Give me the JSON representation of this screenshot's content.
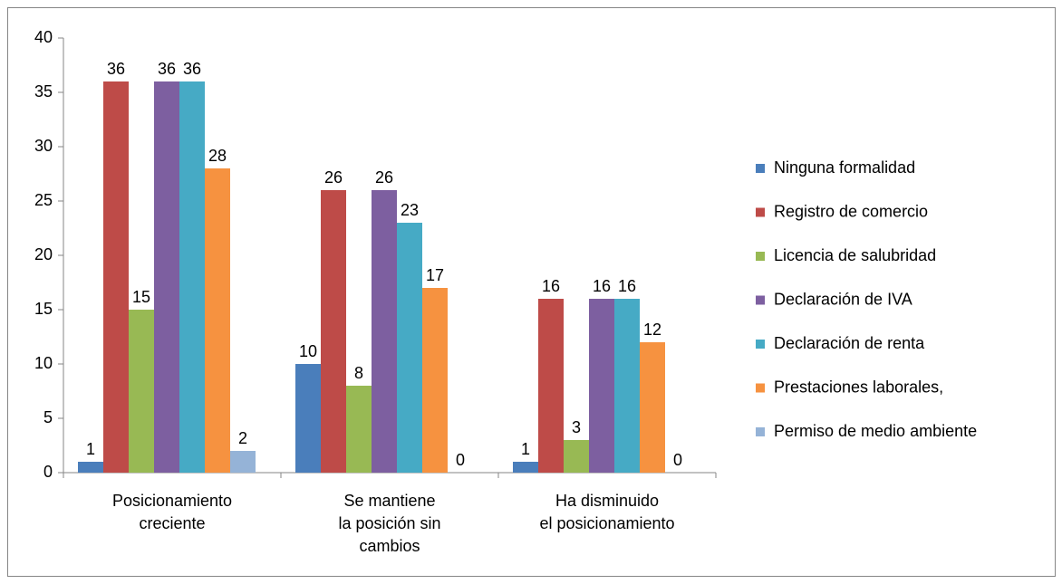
{
  "chart_data": {
    "type": "bar",
    "categories": [
      [
        "Posicionamiento",
        "creciente"
      ],
      [
        "Se mantiene",
        "la posición sin",
        "cambios"
      ],
      [
        "Ha disminuido",
        "el posicionamiento"
      ]
    ],
    "series": [
      {
        "name": "Ninguna formalidad",
        "color": "#4a7ebb",
        "values": [
          1,
          10,
          1
        ]
      },
      {
        "name": "Registro de comercio",
        "color": "#be4b48",
        "values": [
          36,
          26,
          16
        ]
      },
      {
        "name": "Licencia de salubridad",
        "color": "#98b954",
        "values": [
          15,
          8,
          3
        ]
      },
      {
        "name": "Declaración de IVA",
        "color": "#7d5fa0",
        "values": [
          36,
          26,
          16
        ]
      },
      {
        "name": "Declaración de renta",
        "color": "#46aac5",
        "values": [
          36,
          23,
          16
        ]
      },
      {
        "name": "Prestaciones laborales,",
        "color": "#f69240",
        "values": [
          28,
          17,
          12
        ]
      },
      {
        "name": "Permiso de medio ambiente",
        "color": "#95b3d7",
        "values": [
          2,
          0,
          0
        ]
      }
    ],
    "ylim": [
      0,
      40
    ],
    "yticks": [
      0,
      5,
      10,
      15,
      20,
      25,
      30,
      35,
      40
    ],
    "legend": "right"
  }
}
